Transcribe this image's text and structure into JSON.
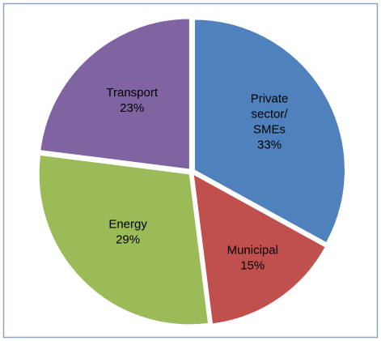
{
  "chart_data": {
    "type": "pie",
    "categories": [
      "Private sector/ SMEs",
      "Municipal",
      "Energy",
      "Transport"
    ],
    "values": [
      33,
      15,
      29,
      23
    ],
    "value_labels": [
      "33%",
      "15%",
      "29%",
      "23%"
    ],
    "colors": [
      "#4f81bd",
      "#c0504d",
      "#9bbb59",
      "#8064a2"
    ]
  }
}
